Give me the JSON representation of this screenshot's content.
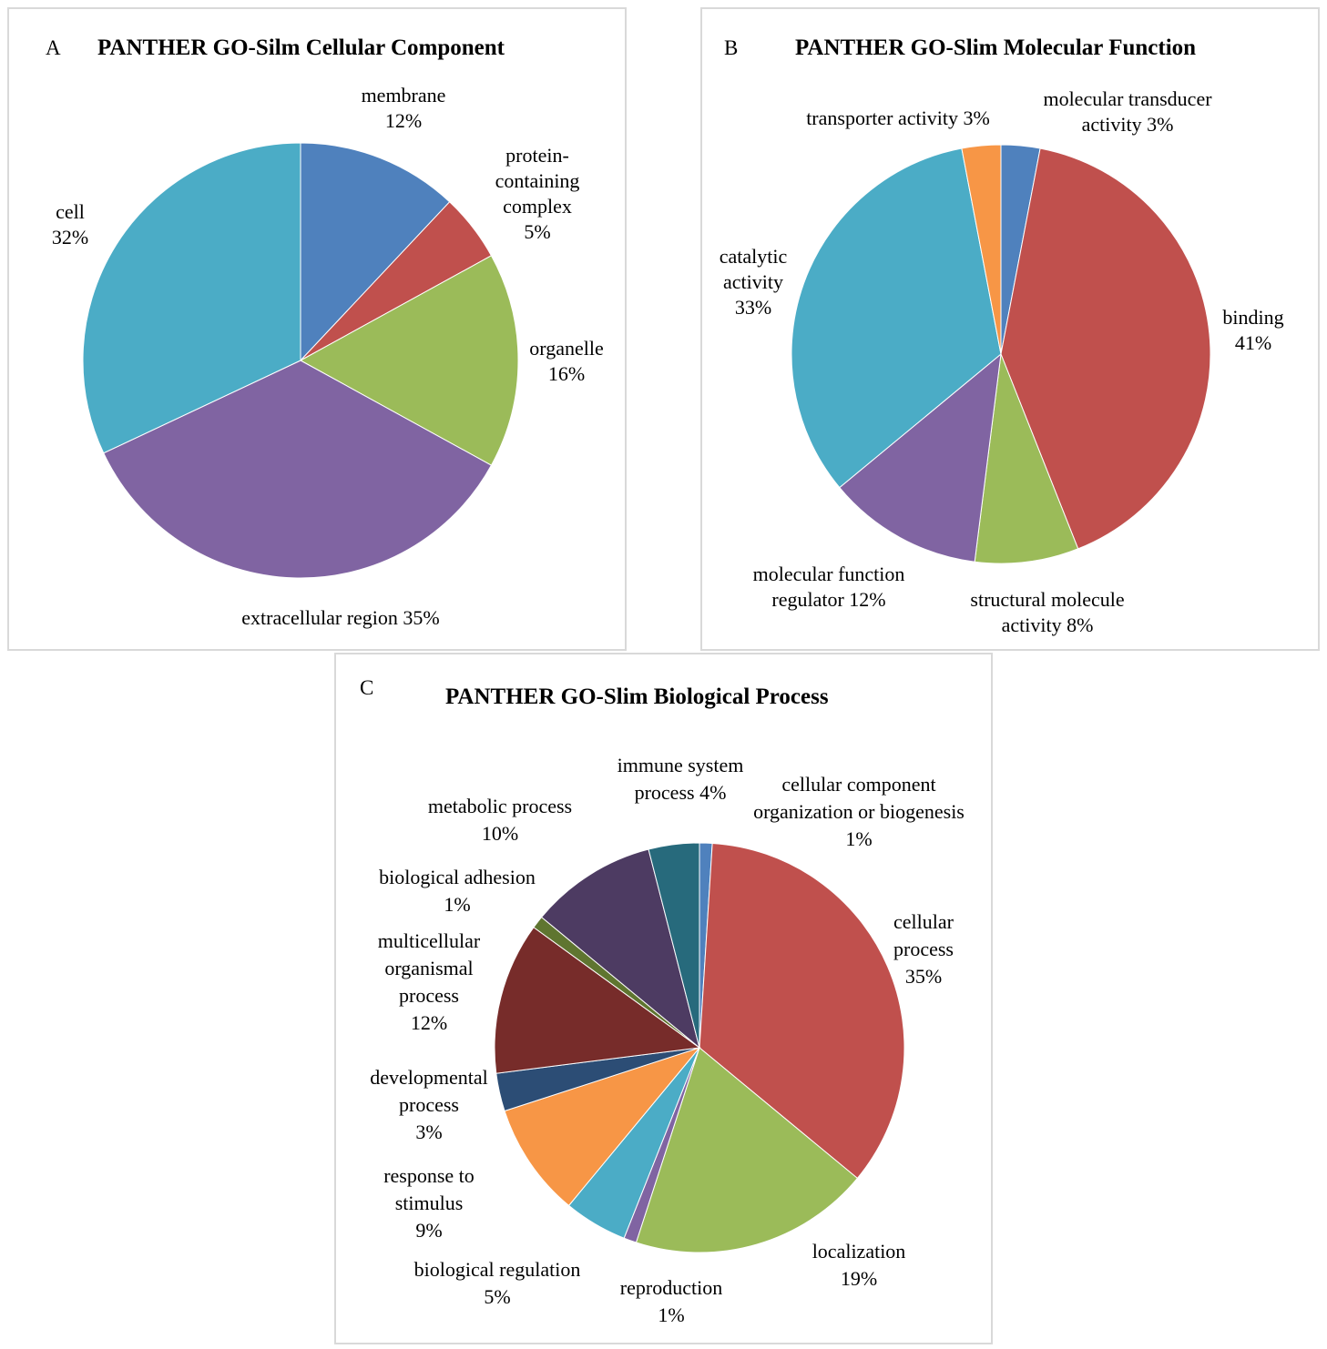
{
  "chart_data": [
    {
      "type": "pie",
      "panel_letter": "A",
      "title": "PANTHER GO-Silm Cellular Component",
      "slices": [
        {
          "label": "membrane",
          "value": 12,
          "value_text": "12%",
          "color": "#4F81BD",
          "label_lines": [
            "membrane",
            "12%"
          ]
        },
        {
          "label": "protein-containing complex",
          "value": 5,
          "value_text": "5%",
          "color": "#C0504D",
          "label_lines": [
            "protein-",
            "containing",
            "complex",
            "5%"
          ]
        },
        {
          "label": "organelle",
          "value": 16,
          "value_text": "16%",
          "color": "#9BBB59",
          "label_lines": [
            "organelle",
            "16%"
          ]
        },
        {
          "label": "extracellular region",
          "value": 35,
          "value_text": "35%",
          "color": "#8064A2",
          "label_lines": [
            "extracellular region  35%"
          ]
        },
        {
          "label": "cell",
          "value": 32,
          "value_text": "32%",
          "color": "#4BACC6",
          "label_lines": [
            "cell",
            "32%"
          ]
        }
      ]
    },
    {
      "type": "pie",
      "panel_letter": "B",
      "title": "PANTHER GO-Slim Molecular Function",
      "slices": [
        {
          "label": "molecular transducer activity",
          "value": 3,
          "value_text": "3%",
          "color": "#4F81BD",
          "label_lines": [
            "molecular transducer",
            "activity  3%"
          ]
        },
        {
          "label": "binding",
          "value": 41,
          "value_text": "41%",
          "color": "#C0504D",
          "label_lines": [
            "binding",
            "41%"
          ]
        },
        {
          "label": "structural molecule activity",
          "value": 8,
          "value_text": "8%",
          "color": "#9BBB59",
          "label_lines": [
            "structural molecule",
            "activity 8%"
          ]
        },
        {
          "label": "molecular function regulator",
          "value": 12,
          "value_text": "12%",
          "color": "#8064A2",
          "label_lines": [
            "molecular function",
            "regulator 12%"
          ]
        },
        {
          "label": "catalytic activity",
          "value": 33,
          "value_text": "33%",
          "color": "#4BACC6",
          "label_lines": [
            "catalytic",
            "activity",
            "33%"
          ]
        },
        {
          "label": "transporter activity",
          "value": 3,
          "value_text": "3%",
          "color": "#F79646",
          "label_lines": [
            "transporter activity 3%"
          ]
        }
      ]
    },
    {
      "type": "pie",
      "panel_letter": "C",
      "title": "PANTHER GO-Slim Biological Process",
      "slices": [
        {
          "label": "cellular component organization or biogenesis",
          "value": 1,
          "value_text": "1%",
          "color": "#4F81BD",
          "label_lines": [
            "cellular component",
            "organization or biogenesis",
            "1%"
          ]
        },
        {
          "label": "cellular process",
          "value": 35,
          "value_text": "35%",
          "color": "#C0504D",
          "label_lines": [
            "cellular",
            "process",
            "35%"
          ]
        },
        {
          "label": "localization",
          "value": 19,
          "value_text": "19%",
          "color": "#9BBB59",
          "label_lines": [
            "localization",
            "19%"
          ]
        },
        {
          "label": "reproduction",
          "value": 1,
          "value_text": "1%",
          "color": "#8064A2",
          "label_lines": [
            "reproduction",
            "1%"
          ]
        },
        {
          "label": "biological regulation",
          "value": 5,
          "value_text": "5%",
          "color": "#4BACC6",
          "label_lines": [
            "biological regulation",
            "5%"
          ]
        },
        {
          "label": "response to stimulus",
          "value": 9,
          "value_text": "9%",
          "color": "#F79646",
          "label_lines": [
            "response to",
            "stimulus",
            "9%"
          ]
        },
        {
          "label": "developmental process",
          "value": 3,
          "value_text": "3%",
          "color": "#2C4D75",
          "label_lines": [
            "developmental",
            "process",
            "3%"
          ]
        },
        {
          "label": "multicellular organismal process",
          "value": 12,
          "value_text": "12%",
          "color": "#772C2A",
          "label_lines": [
            "multicellular",
            "organismal",
            "process",
            "12%"
          ]
        },
        {
          "label": "biological adhesion",
          "value": 1,
          "value_text": "1%",
          "color": "#5F7530",
          "label_lines": [
            "biological adhesion",
            "1%"
          ]
        },
        {
          "label": "metabolic process",
          "value": 10,
          "value_text": "10%",
          "color": "#4D3B62",
          "label_lines": [
            "metabolic process",
            "10%"
          ]
        },
        {
          "label": "immune system process",
          "value": 4,
          "value_text": "4%",
          "color": "#276A7C",
          "label_lines": [
            "immune system",
            "process 4%"
          ]
        }
      ]
    }
  ]
}
